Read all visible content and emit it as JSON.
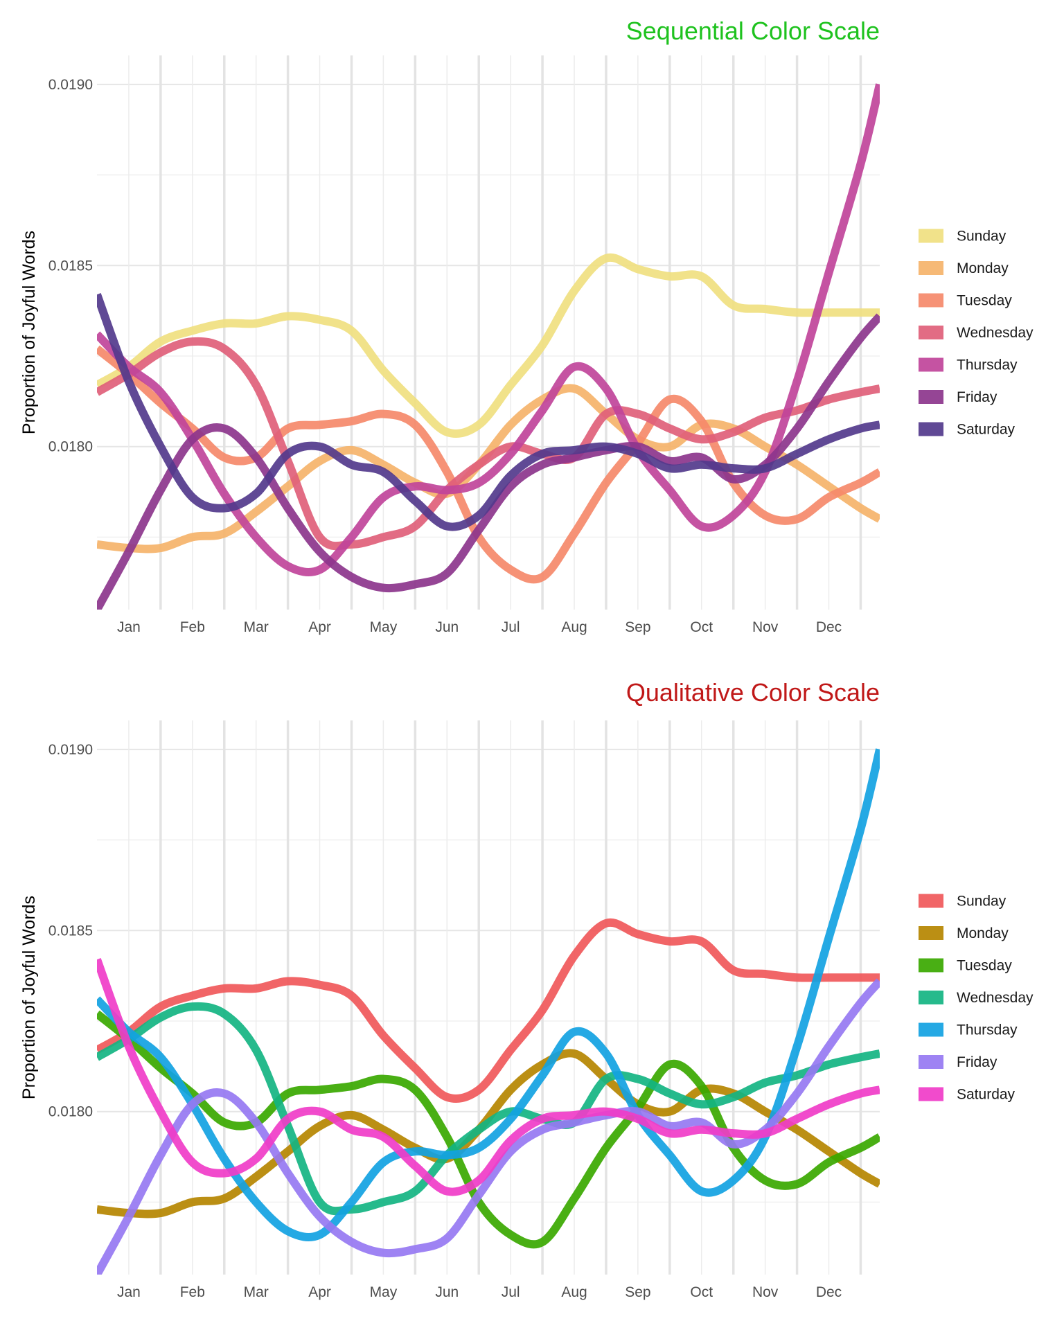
{
  "chart_data": [
    {
      "type": "line",
      "title": "Sequential Color Scale",
      "title_color": "#1ec21e",
      "ylabel": "Proportion of Joyful Words",
      "xlabel": "",
      "xlim": [
        0.5,
        12.8
      ],
      "ylim": [
        0.01755,
        0.01908
      ],
      "y_ticks": [
        "0.0180",
        "0.0185",
        "0.0190"
      ],
      "y_tick_values": [
        0.018,
        0.0185,
        0.019
      ],
      "categories": [
        "Jan",
        "Feb",
        "Mar",
        "Apr",
        "May",
        "Jun",
        "Jul",
        "Aug",
        "Sep",
        "Oct",
        "Nov",
        "Dec"
      ],
      "grid": true,
      "legend_position": "right",
      "x": [
        0.5,
        1,
        1.5,
        2,
        2.5,
        3,
        3.5,
        4,
        4.5,
        5,
        5.5,
        6,
        6.5,
        7,
        7.5,
        8,
        8.5,
        9,
        9.5,
        10,
        10.5,
        11,
        11.5,
        12,
        12.5,
        12.8
      ],
      "series": [
        {
          "name": "Sunday",
          "color": "#f0e080",
          "values": [
            0.01817,
            0.01822,
            0.01829,
            0.01832,
            0.01834,
            0.01834,
            0.01836,
            0.01835,
            0.01832,
            0.01821,
            0.01812,
            0.01804,
            0.01806,
            0.01817,
            0.01828,
            0.01843,
            0.01852,
            0.01849,
            0.01847,
            0.01847,
            0.01839,
            0.01838,
            0.01837,
            0.01837,
            0.01837,
            0.01837
          ]
        },
        {
          "name": "Monday",
          "color": "#f5b36a",
          "values": [
            0.01773,
            0.01772,
            0.01772,
            0.01775,
            0.01776,
            0.01782,
            0.01789,
            0.01796,
            0.01799,
            0.01795,
            0.0179,
            0.01787,
            0.01795,
            0.01806,
            0.01813,
            0.01816,
            0.01809,
            0.01802,
            0.018,
            0.01806,
            0.01805,
            0.018,
            0.01795,
            0.01789,
            0.01783,
            0.0178
          ]
        },
        {
          "name": "Tuesday",
          "color": "#f5896a",
          "values": [
            0.01827,
            0.0182,
            0.01812,
            0.01805,
            0.01797,
            0.01797,
            0.01805,
            0.01806,
            0.01807,
            0.01809,
            0.01806,
            0.01793,
            0.01775,
            0.01766,
            0.01764,
            0.01776,
            0.0179,
            0.01801,
            0.01813,
            0.01807,
            0.0179,
            0.01781,
            0.0178,
            0.01786,
            0.0179,
            0.01793
          ]
        },
        {
          "name": "Wednesday",
          "color": "#e0607a",
          "values": [
            0.01815,
            0.0182,
            0.01826,
            0.01829,
            0.01827,
            0.01817,
            0.01796,
            0.01775,
            0.01773,
            0.01775,
            0.01778,
            0.01788,
            0.01795,
            0.018,
            0.01798,
            0.01797,
            0.01809,
            0.01809,
            0.01805,
            0.01802,
            0.01804,
            0.01808,
            0.0181,
            0.01813,
            0.01815,
            0.01816
          ]
        },
        {
          "name": "Thursday",
          "color": "#c0449a",
          "values": [
            0.01831,
            0.01822,
            0.01815,
            0.01802,
            0.01787,
            0.01775,
            0.01767,
            0.01766,
            0.01775,
            0.01786,
            0.01789,
            0.01788,
            0.0179,
            0.01798,
            0.0181,
            0.01822,
            0.01816,
            0.01799,
            0.01788,
            0.01778,
            0.01781,
            0.01793,
            0.01818,
            0.01848,
            0.01878,
            0.019
          ]
        },
        {
          "name": "Friday",
          "color": "#8c358c",
          "values": [
            0.01755,
            0.01771,
            0.01788,
            0.01802,
            0.01805,
            0.01797,
            0.01783,
            0.01771,
            0.01764,
            0.01761,
            0.01762,
            0.01765,
            0.01777,
            0.01789,
            0.01795,
            0.01797,
            0.01799,
            0.018,
            0.01796,
            0.01797,
            0.01791,
            0.01795,
            0.01805,
            0.01818,
            0.0183,
            0.01836
          ]
        },
        {
          "name": "Saturday",
          "color": "#523a8c",
          "values": [
            0.01842,
            0.01818,
            0.018,
            0.01786,
            0.01783,
            0.01787,
            0.01798,
            0.018,
            0.01795,
            0.01793,
            0.01785,
            0.01778,
            0.01781,
            0.01792,
            0.01798,
            0.01799,
            0.018,
            0.01798,
            0.01794,
            0.01795,
            0.01794,
            0.01794,
            0.01798,
            0.01802,
            0.01805,
            0.01806
          ]
        }
      ]
    },
    {
      "type": "line",
      "title": "Qualitative Color Scale",
      "title_color": "#c01818",
      "ylabel": "Proportion of Joyful Words",
      "xlabel": "",
      "xlim": [
        0.5,
        12.8
      ],
      "ylim": [
        0.01755,
        0.01908
      ],
      "y_ticks": [
        "0.0180",
        "0.0185",
        "0.0190"
      ],
      "y_tick_values": [
        0.018,
        0.0185,
        0.019
      ],
      "categories": [
        "Jan",
        "Feb",
        "Mar",
        "Apr",
        "May",
        "Jun",
        "Jul",
        "Aug",
        "Sep",
        "Oct",
        "Nov",
        "Dec"
      ],
      "grid": true,
      "legend_position": "right",
      "x": [
        0.5,
        1,
        1.5,
        2,
        2.5,
        3,
        3.5,
        4,
        4.5,
        5,
        5.5,
        6,
        6.5,
        7,
        7.5,
        8,
        8.5,
        9,
        9.5,
        10,
        10.5,
        11,
        11.5,
        12,
        12.5,
        12.8
      ],
      "series": [
        {
          "name": "Sunday",
          "color": "#f0585a",
          "values": [
            0.01817,
            0.01822,
            0.01829,
            0.01832,
            0.01834,
            0.01834,
            0.01836,
            0.01835,
            0.01832,
            0.01821,
            0.01812,
            0.01804,
            0.01806,
            0.01817,
            0.01828,
            0.01843,
            0.01852,
            0.01849,
            0.01847,
            0.01847,
            0.01839,
            0.01838,
            0.01837,
            0.01837,
            0.01837,
            0.01837
          ]
        },
        {
          "name": "Monday",
          "color": "#b58500",
          "values": [
            0.01773,
            0.01772,
            0.01772,
            0.01775,
            0.01776,
            0.01782,
            0.01789,
            0.01796,
            0.01799,
            0.01795,
            0.0179,
            0.01787,
            0.01795,
            0.01806,
            0.01813,
            0.01816,
            0.01809,
            0.01802,
            0.018,
            0.01806,
            0.01805,
            0.018,
            0.01795,
            0.01789,
            0.01783,
            0.0178
          ]
        },
        {
          "name": "Tuesday",
          "color": "#3aa800",
          "values": [
            0.01827,
            0.0182,
            0.01812,
            0.01805,
            0.01797,
            0.01797,
            0.01805,
            0.01806,
            0.01807,
            0.01809,
            0.01806,
            0.01793,
            0.01775,
            0.01766,
            0.01764,
            0.01776,
            0.0179,
            0.01801,
            0.01813,
            0.01807,
            0.0179,
            0.01781,
            0.0178,
            0.01786,
            0.0179,
            0.01793
          ]
        },
        {
          "name": "Wednesday",
          "color": "#14b482",
          "values": [
            0.01815,
            0.0182,
            0.01826,
            0.01829,
            0.01827,
            0.01817,
            0.01796,
            0.01775,
            0.01773,
            0.01775,
            0.01778,
            0.01788,
            0.01795,
            0.018,
            0.01798,
            0.01797,
            0.01809,
            0.01809,
            0.01805,
            0.01802,
            0.01804,
            0.01808,
            0.0181,
            0.01813,
            0.01815,
            0.01816
          ]
        },
        {
          "name": "Thursday",
          "color": "#12a2e2",
          "values": [
            0.01831,
            0.01822,
            0.01815,
            0.01802,
            0.01787,
            0.01775,
            0.01767,
            0.01766,
            0.01775,
            0.01786,
            0.01789,
            0.01788,
            0.0179,
            0.01798,
            0.0181,
            0.01822,
            0.01816,
            0.01799,
            0.01788,
            0.01778,
            0.01781,
            0.01793,
            0.01818,
            0.01848,
            0.01878,
            0.019
          ]
        },
        {
          "name": "Friday",
          "color": "#9678f2",
          "values": [
            0.01755,
            0.01771,
            0.01788,
            0.01802,
            0.01805,
            0.01797,
            0.01783,
            0.01771,
            0.01764,
            0.01761,
            0.01762,
            0.01765,
            0.01777,
            0.01789,
            0.01795,
            0.01797,
            0.01799,
            0.018,
            0.01796,
            0.01797,
            0.01791,
            0.01795,
            0.01805,
            0.01818,
            0.0183,
            0.01836
          ]
        },
        {
          "name": "Saturday",
          "color": "#f03cc8",
          "values": [
            0.01842,
            0.01818,
            0.018,
            0.01786,
            0.01783,
            0.01787,
            0.01798,
            0.018,
            0.01795,
            0.01793,
            0.01785,
            0.01778,
            0.01781,
            0.01792,
            0.01798,
            0.01799,
            0.018,
            0.01798,
            0.01794,
            0.01795,
            0.01794,
            0.01794,
            0.01798,
            0.01802,
            0.01805,
            0.01806
          ]
        }
      ]
    }
  ]
}
